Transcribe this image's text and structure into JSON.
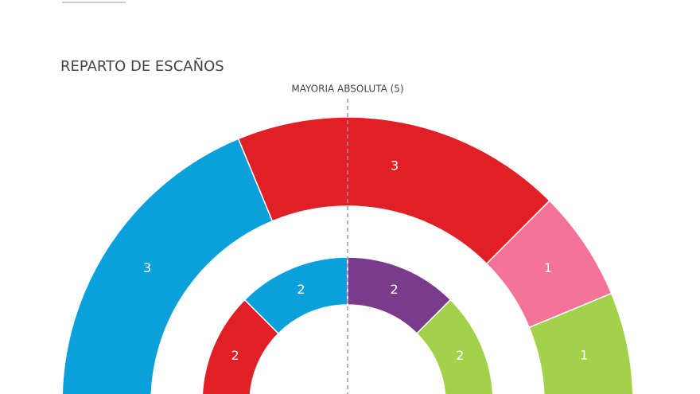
{
  "chart_data": {
    "type": "hemicycle",
    "title": "REPARTO DE ESCAÑOS",
    "annotation": "MAYORIA ABSOLUTA (5)",
    "rings": [
      {
        "values": [
          3,
          3,
          1,
          1
        ],
        "colors": [
          "#0aa0dc",
          "#e01f26",
          "#f47396",
          "#a4d14a"
        ]
      },
      {
        "values": [
          2,
          2,
          2,
          2
        ],
        "colors": [
          "#e01f26",
          "#0aa0dc",
          "#7a3c8a",
          "#a4d14a"
        ]
      }
    ]
  }
}
